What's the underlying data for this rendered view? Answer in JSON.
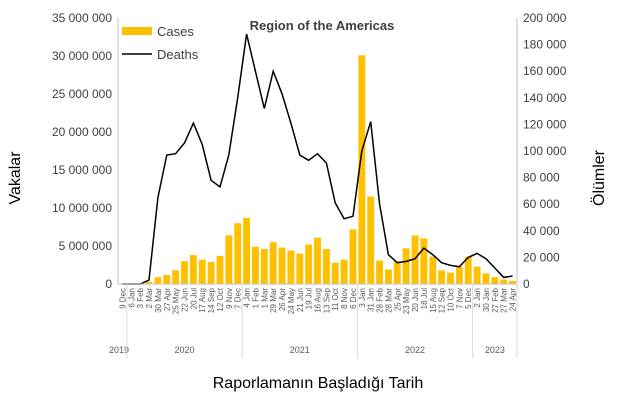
{
  "chart_data": {
    "type": "bar+line",
    "title": "Region of the Americas",
    "xlabel": "Raporlamanın Başladığı Tarih",
    "ylabel": "Vakalar",
    "y2label": "Ölümler",
    "ylim": [
      0,
      35000000
    ],
    "y2lim": [
      0,
      200000
    ],
    "yticks": [
      "0",
      "5 000 000",
      "10 000 000",
      "15 000 000",
      "20 000 000",
      "25 000 000",
      "30 000 000",
      "35 000 000"
    ],
    "y2ticks": [
      "0",
      "20 000",
      "40 000",
      "60 000",
      "80 000",
      "100 000",
      "120 000",
      "140 000",
      "160 000",
      "180 000",
      "200 000"
    ],
    "legend": {
      "position": "top-left",
      "entries": [
        "Cases",
        "Deaths"
      ]
    },
    "colors": {
      "cases": "#FFC000",
      "deaths": "#000000"
    },
    "categories": [
      "9 Dec",
      "6 Jan",
      "3 Feb",
      "2 Mar",
      "30 Mar",
      "27 Apr",
      "25 May",
      "22 Jun",
      "20 Jul",
      "17 Aug",
      "14 Sep",
      "12 Oct",
      "9 Nov",
      "7 Dec",
      "4 Jan",
      "1 Feb",
      "1 Mar",
      "29 Mar",
      "26 Apr",
      "24 May",
      "21 Jun",
      "19 Jul",
      "16 Aug",
      "13 Sep",
      "11 Oct",
      "8 Nov",
      "6 Dec",
      "3 Jan",
      "31 Jan",
      "28 Feb",
      "28 Mar",
      "25 Apr",
      "23 May",
      "20 Jun",
      "18 Jul",
      "15 Aug",
      "12 Sep",
      "10 Oct",
      "7 Nov",
      "5 Dec",
      "2 Jan",
      "30 Jan",
      "27 Feb",
      "27 Mar",
      "24 Apr"
    ],
    "years": [
      {
        "label": "2019",
        "start": 0,
        "end": 0
      },
      {
        "label": "2020",
        "start": 1,
        "end": 13
      },
      {
        "label": "2021",
        "start": 14,
        "end": 26
      },
      {
        "label": "2022",
        "start": 27,
        "end": 39
      },
      {
        "label": "2023",
        "start": 40,
        "end": 44
      }
    ],
    "series": [
      {
        "name": "Cases",
        "axis": "left",
        "values": [
          0,
          0,
          0,
          300000,
          900000,
          1200000,
          1800000,
          3000000,
          3800000,
          3200000,
          2900000,
          3700000,
          6400000,
          8000000,
          8700000,
          4900000,
          4600000,
          5500000,
          4800000,
          4400000,
          4000000,
          5200000,
          6100000,
          4600000,
          2800000,
          3200000,
          7200000,
          30100000,
          11500000,
          3100000,
          1900000,
          3000000,
          4700000,
          6400000,
          6000000,
          3600000,
          1800000,
          1500000,
          2300000,
          3600000,
          2300000,
          1400000,
          900000,
          600000,
          400000
        ]
      },
      {
        "name": "Deaths",
        "axis": "right",
        "values": [
          0,
          0,
          0,
          3000,
          65000,
          97000,
          98000,
          106000,
          121000,
          105000,
          78000,
          73000,
          97000,
          140000,
          188000,
          160000,
          132000,
          160000,
          143000,
          121000,
          97000,
          93000,
          98000,
          91000,
          61000,
          49000,
          51000,
          100000,
          122000,
          60000,
          22000,
          16000,
          17000,
          19000,
          27000,
          22000,
          16000,
          14000,
          13000,
          20000,
          23000,
          19000,
          12000,
          5000,
          6000
        ]
      }
    ]
  }
}
